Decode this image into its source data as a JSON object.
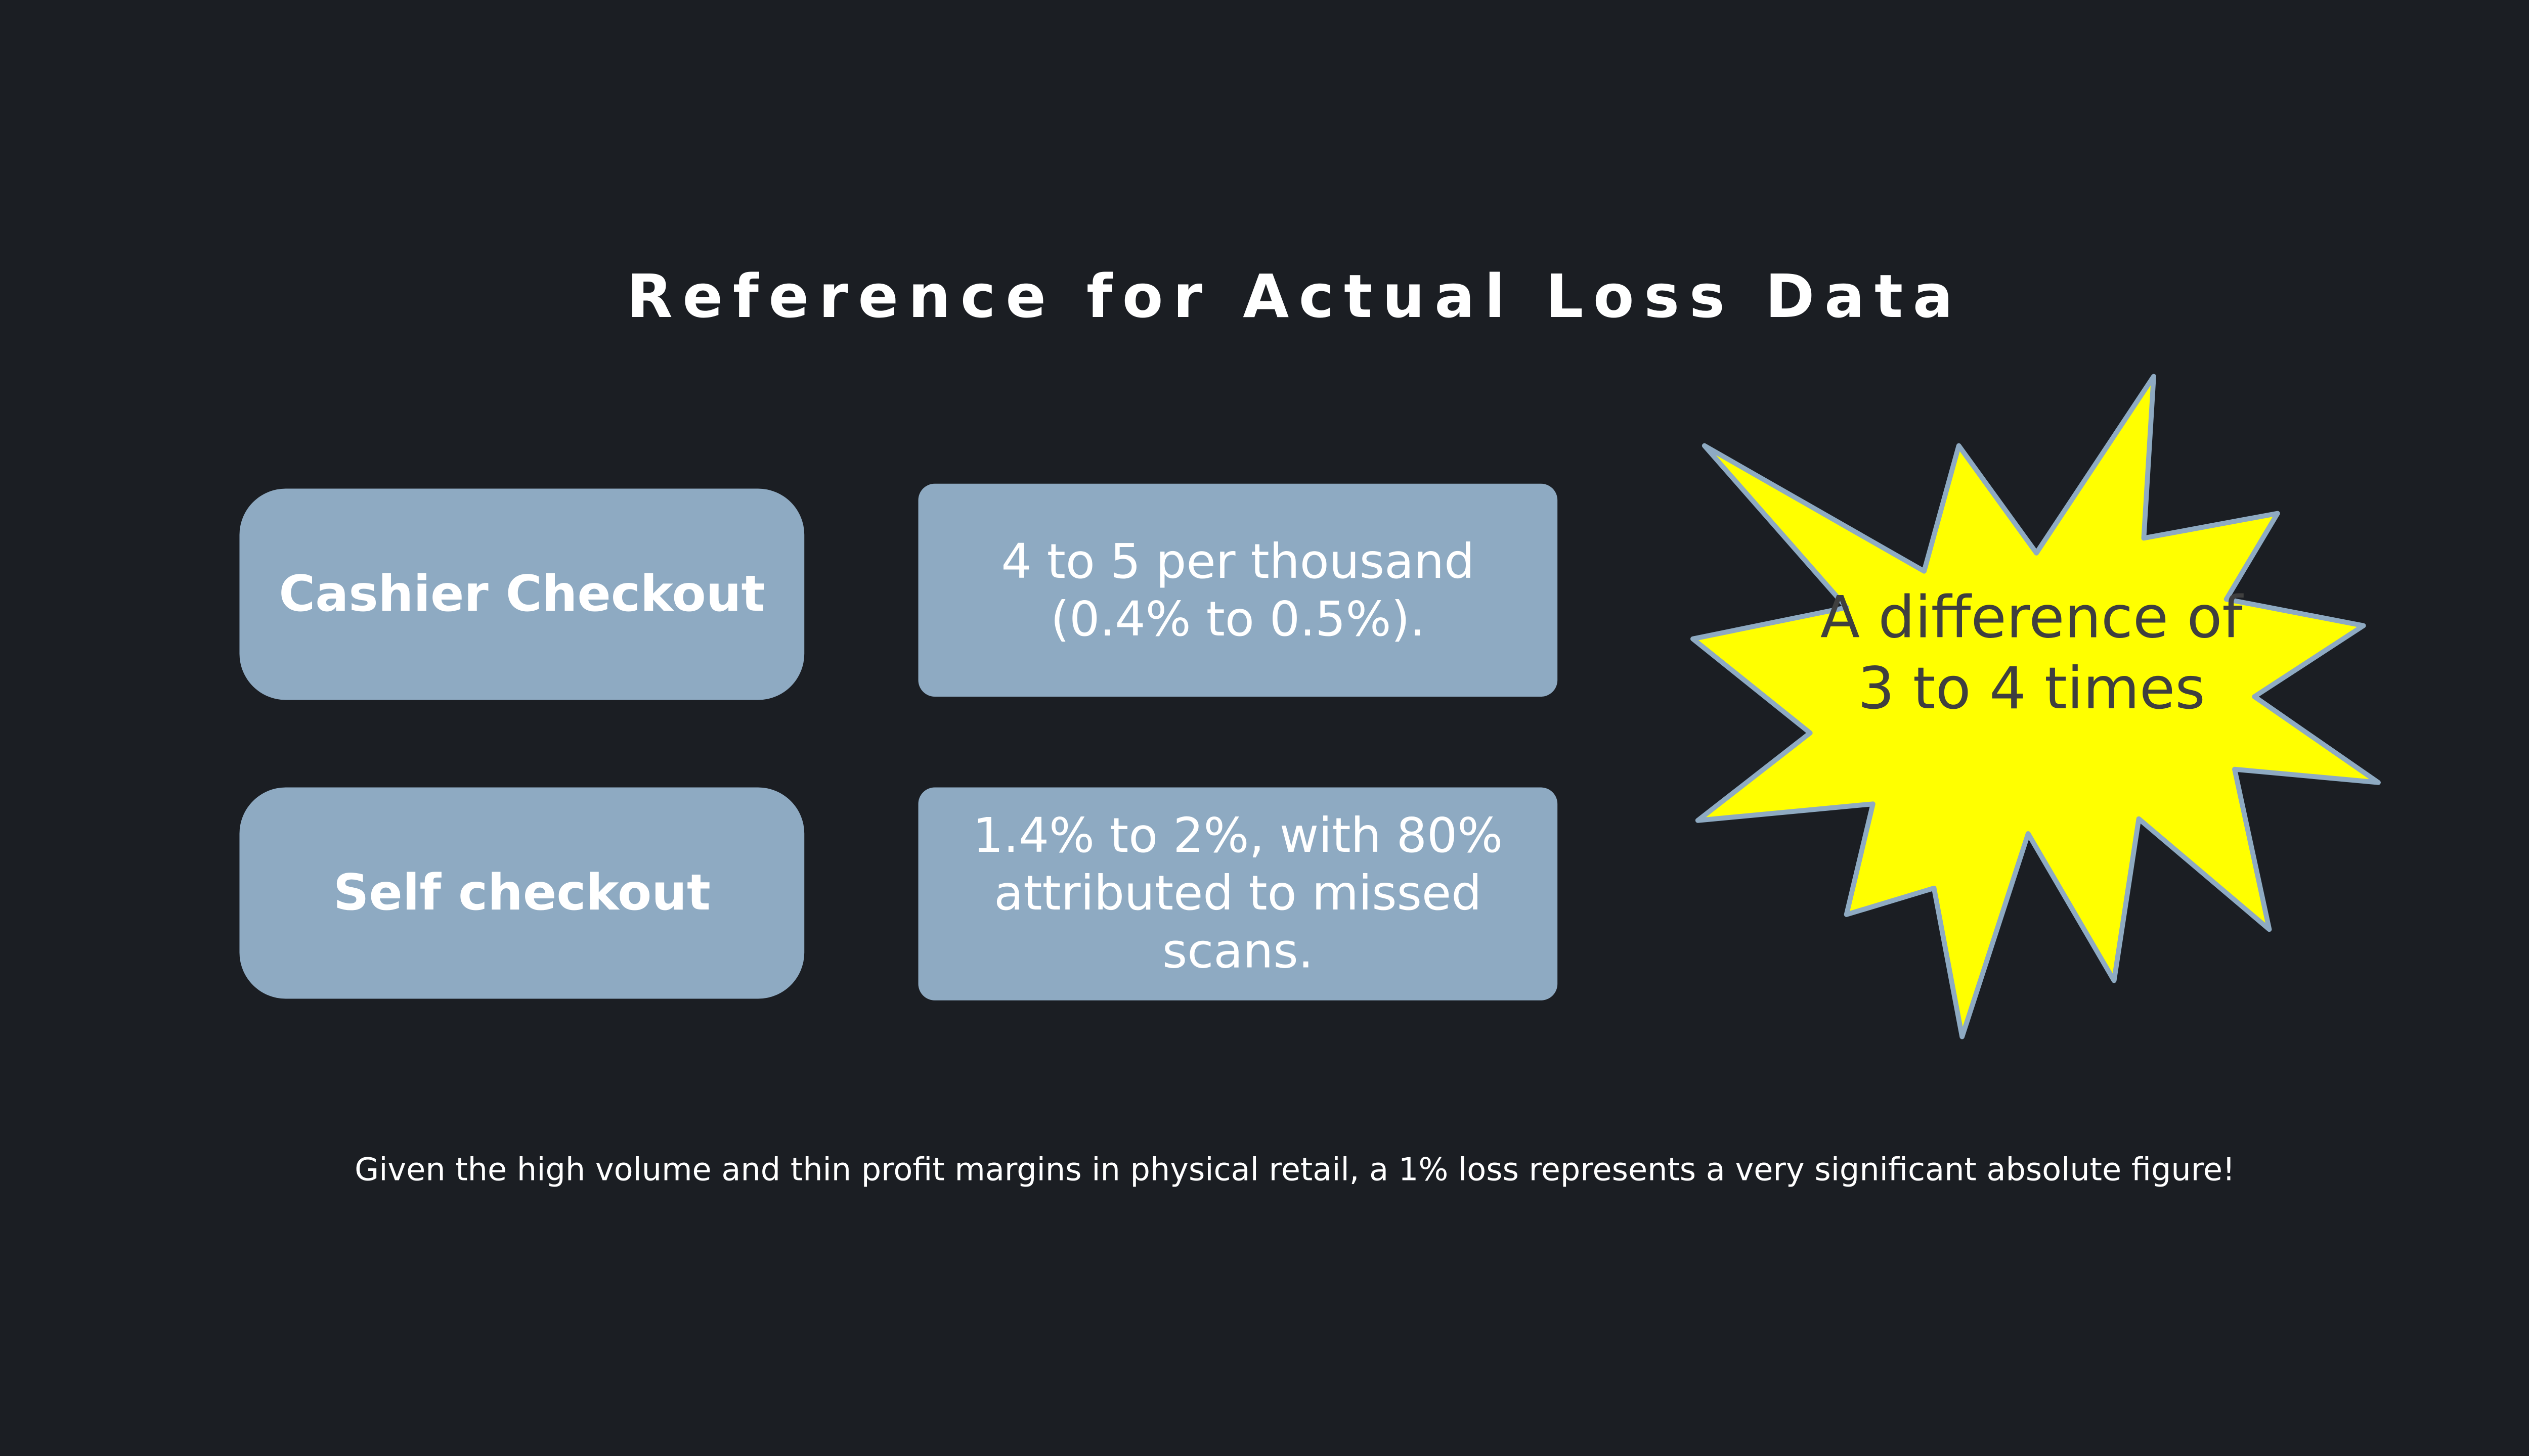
{
  "title": "Reference for Actual Loss Data",
  "rows": [
    {
      "label": "Cashier Checkout",
      "value": "4 to 5 per thousand (0.4% to 0.5%)."
    },
    {
      "label": "Self checkout",
      "value": "1.4% to 2%, with 80% attributed to missed scans."
    }
  ],
  "callout": {
    "text": "A difference of 3 to 4 times",
    "fill": "#ffff00",
    "stroke": "#8eaac2"
  },
  "footer": "Given the high volume and thin profit margins in physical retail, a 1% loss represents a very significant absolute figure!",
  "colors": {
    "background": "#1b1e23",
    "box": "#8eaac2"
  }
}
